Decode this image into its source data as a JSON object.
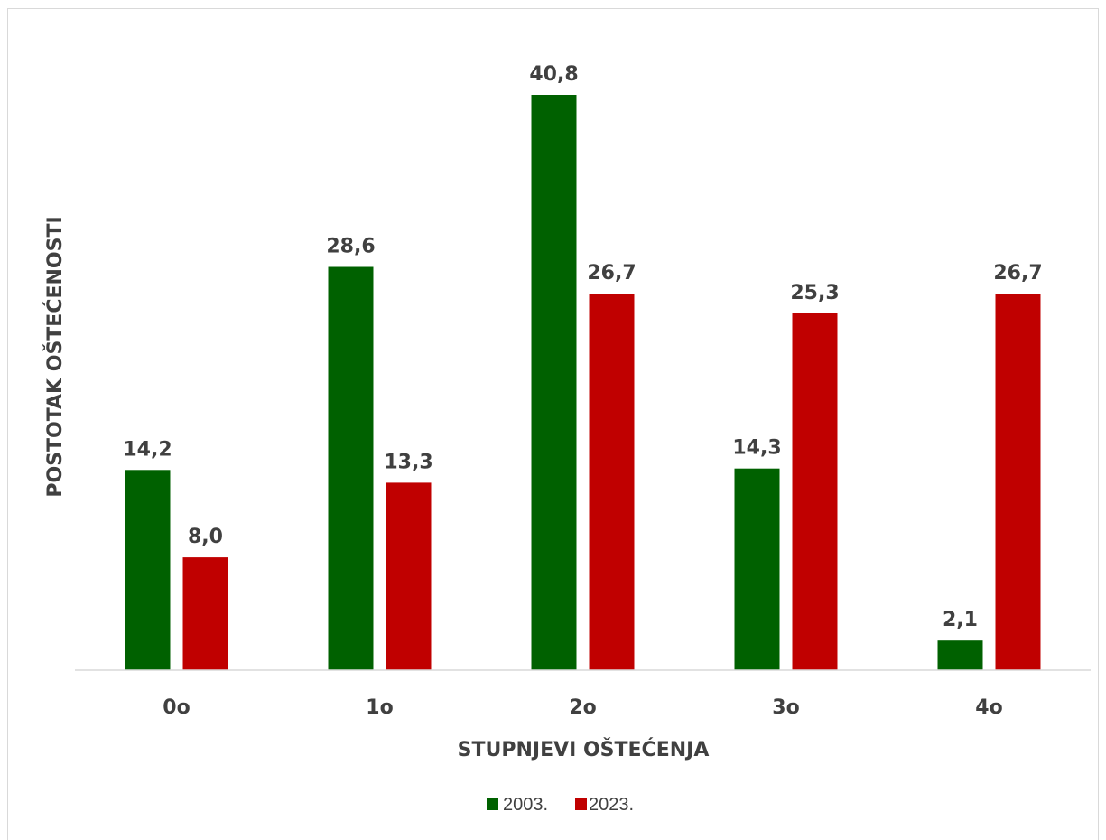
{
  "chart_data": {
    "type": "bar",
    "title": "",
    "xlabel": "STUPNJEVI OŠTEĆENJA",
    "ylabel": "POSTOTAK OŠTEĆENOSTI",
    "categories": [
      "0o",
      "1o",
      "2o",
      "3o",
      "4o"
    ],
    "series": [
      {
        "name": "2003.",
        "color": "#006100",
        "values": [
          14.2,
          28.6,
          40.8,
          14.3,
          2.1
        ],
        "labels": [
          "14,2",
          "28,6",
          "40,8",
          "14,3",
          "2,1"
        ]
      },
      {
        "name": "2023.",
        "color": "#c00000",
        "values": [
          8.0,
          13.3,
          26.7,
          25.3,
          26.7
        ],
        "labels": [
          "8,0",
          "13,3",
          "26,7",
          "25,3",
          "26,7"
        ]
      }
    ],
    "ylim": [
      0,
      40.8
    ],
    "grid": false,
    "legend_position": "bottom",
    "data_labels": true
  }
}
